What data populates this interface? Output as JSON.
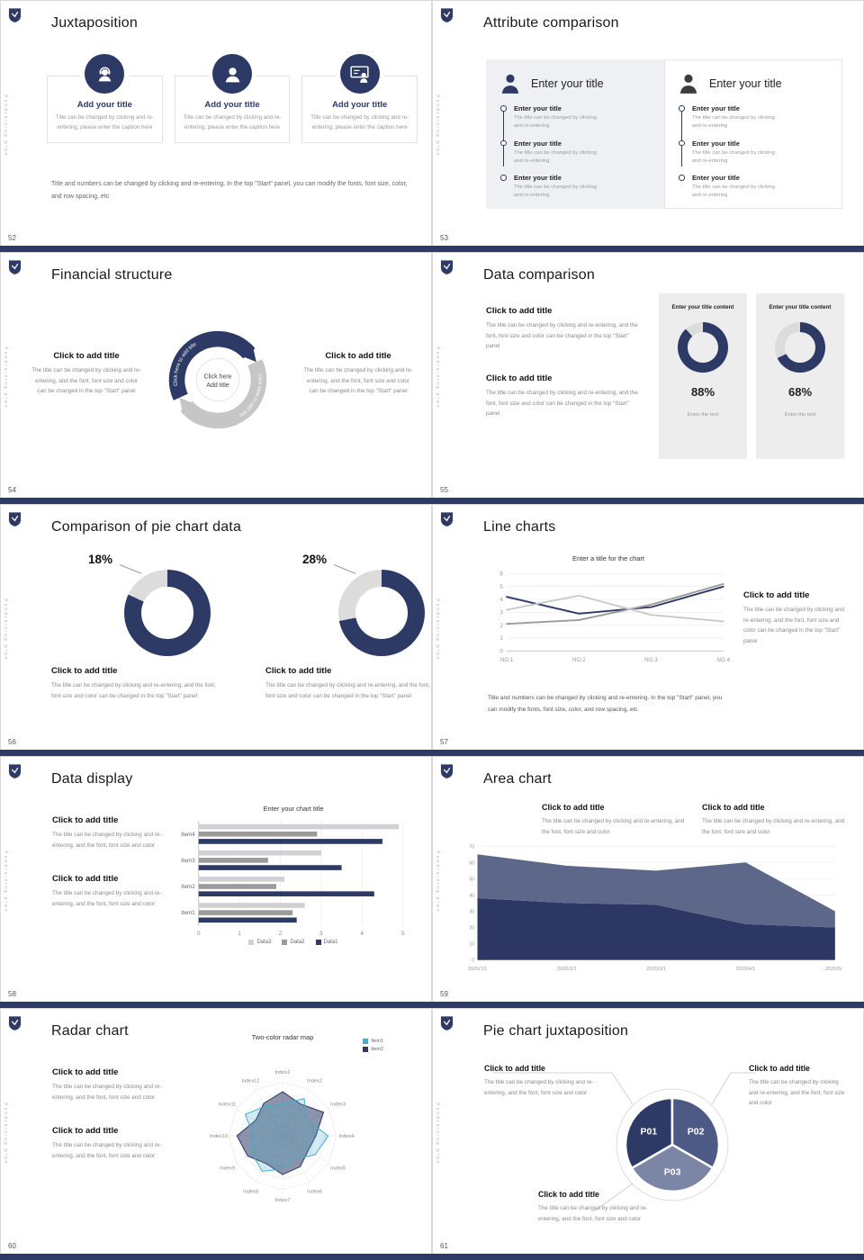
{
  "theme": {
    "navy": "#2d3a66",
    "navy_mid": "#4d5a85",
    "slate": "#7b85a5",
    "gray_dark": "#9b9b9b",
    "gray_light": "#d0d0d5",
    "donut_track": "#dcdcdc",
    "cyan": "#4bacc6"
  },
  "meta": {
    "side_text": "Fundraising plan"
  },
  "common": {
    "click_add": "Click to add title",
    "enter_title": "Enter your title",
    "add_title": "Add your title",
    "body_long": "The title can be changed by clicking and re-entering, and the font, font size and color can be changed in the top \"Start\" panel",
    "body_short": "The title can be changed by clicking and re-entering, and the font, font size and color",
    "caption": "Title can be changed by clicking and re-entering, please enter the caption here",
    "small_line": "The title can be changed by clicking and re-entering",
    "note": "Title and numbers can be changed by clicking and re-entering. In the top \"Start\" panel, you can modify the fonts, font size, color, and row spacing, etc"
  },
  "slides": [
    {
      "number": "52",
      "title": "Juxtaposition"
    },
    {
      "number": "53",
      "title": "Attribute comparison"
    },
    {
      "number": "54",
      "title": "Financial structure",
      "center_top": "Click here",
      "center_bottom": "Add title",
      "arc_label": "Click here to add title"
    },
    {
      "number": "55",
      "title": "Data comparison",
      "cards": [
        {
          "header": "Enter your title content",
          "percent": 88,
          "mode": "fill",
          "percent_label": "88%",
          "footer": "Enter the text"
        },
        {
          "header": "Enter your title content",
          "percent": 68,
          "mode": "fill",
          "percent_label": "68%",
          "footer": "Enter the text"
        }
      ]
    },
    {
      "number": "56",
      "title": "Comparison of pie chart data",
      "donuts": [
        {
          "percent": 18,
          "mode": "gap",
          "label": "18%"
        },
        {
          "percent": 28,
          "mode": "gap",
          "label": "28%"
        }
      ]
    },
    {
      "number": "57",
      "title": "Line charts",
      "chart": {
        "type": "line",
        "title": "Enter a title for the chart",
        "ymax": 6,
        "categories": [
          "NO.1",
          "NO.2",
          "NO.3",
          "NO.4"
        ],
        "series": [
          {
            "color": "#2d3a66",
            "values": [
              4.2,
              2.9,
              3.4,
              5.0
            ]
          },
          {
            "color": "#9b9b9b",
            "values": [
              2.1,
              2.4,
              3.6,
              5.2
            ]
          },
          {
            "color": "#c9c9c9",
            "values": [
              3.2,
              4.3,
              2.8,
              2.3
            ]
          }
        ]
      }
    },
    {
      "number": "58",
      "title": "Data display",
      "chart": {
        "type": "bars",
        "title": "Enter your chart title",
        "xmax": 5,
        "colors": [
          "#d0d0d5",
          "#9b9b9b",
          "#2d3a66"
        ],
        "items": [
          {
            "label": "Item4",
            "values": [
              4.9,
              2.9,
              4.5
            ]
          },
          {
            "label": "Item3",
            "values": [
              3.0,
              1.7,
              3.5
            ]
          },
          {
            "label": "Item2",
            "values": [
              2.1,
              1.9,
              4.3
            ]
          },
          {
            "label": "Item1",
            "values": [
              2.6,
              2.3,
              2.4
            ]
          }
        ],
        "legend": [
          {
            "name": "Data3",
            "color": "#d0d0d5"
          },
          {
            "name": "Data2",
            "color": "#9b9b9b"
          },
          {
            "name": "Data1",
            "color": "#2d3a66"
          }
        ]
      }
    },
    {
      "number": "59",
      "title": "Area chart",
      "chart": {
        "type": "area",
        "ymax": 70,
        "ystep": 10,
        "x": [
          "2020/1/1",
          "2020/2/1",
          "2020/3/1",
          "2020/4/1",
          "2020/5/1"
        ],
        "series": [
          {
            "color": "#2c3863",
            "values": [
              38,
              35,
              34,
              22,
              20
            ]
          },
          {
            "color": "#5d6789",
            "values": [
              27,
              23,
              21,
              38,
              10
            ]
          }
        ]
      }
    },
    {
      "number": "60",
      "title": "Radar chart",
      "chart": {
        "type": "radar",
        "title": "Two-color radar map",
        "max": 100,
        "axes": [
          "Index1",
          "Index2",
          "Index3",
          "Index4",
          "Index5",
          "Index6",
          "Index7",
          "Index8",
          "Index9",
          "Index10",
          "Index11",
          "Index12"
        ],
        "series": [
          {
            "name": "Item2",
            "stroke": "#2d3a66",
            "fill": "rgba(45,58,102,0.55)",
            "values": [
              82,
              68,
              88,
              62,
              55,
              66,
              72,
              60,
              75,
              85,
              58,
              70
            ]
          },
          {
            "name": "Item1",
            "stroke": "#4bacc6",
            "fill": "rgba(75,172,198,0.25)",
            "values": [
              60,
              80,
              55,
              85,
              70,
              50,
              62,
              76,
              66,
              55,
              80,
              64
            ]
          }
        ],
        "legend": [
          {
            "name": "Item1",
            "color": "#4bacc6"
          },
          {
            "name": "Item2",
            "color": "#2d3a66"
          }
        ]
      }
    },
    {
      "number": "61",
      "title": "Pie chart juxtaposition",
      "chart": {
        "type": "pie",
        "start_deg": 150,
        "segments": [
          {
            "label": "P01",
            "value": 33.3,
            "color": "#2d3a66"
          },
          {
            "label": "P02",
            "value": 33.3,
            "color": "#4d5a85"
          },
          {
            "label": "P03",
            "value": 33.4,
            "color": "#7b85a5"
          }
        ]
      }
    }
  ]
}
